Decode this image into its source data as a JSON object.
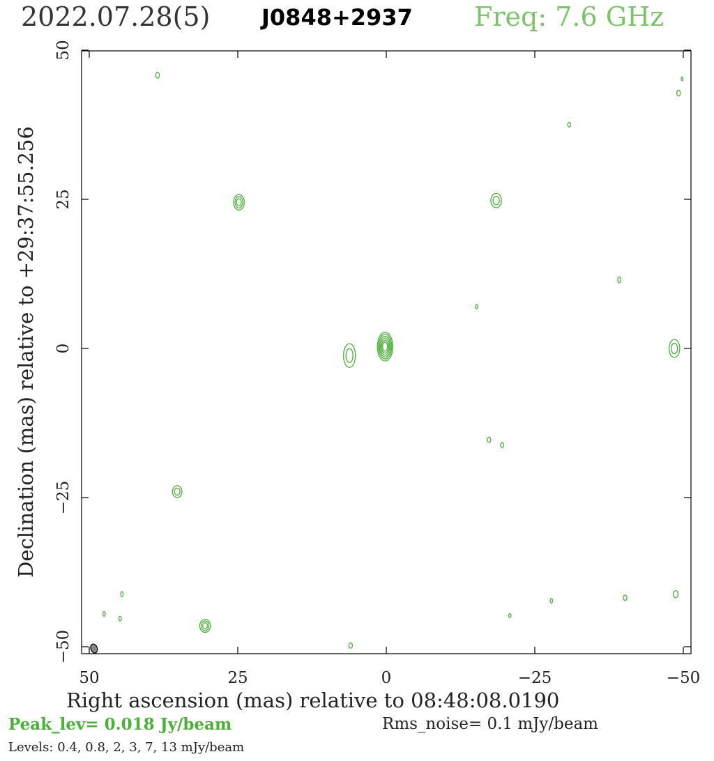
{
  "header": {
    "date": "2022.07.28(5)",
    "source": "J0848+2937",
    "frequency": "Freq: 7.6 GHz"
  },
  "colors": {
    "contour": "#4caf3a",
    "frequency_text": "#7cc46a",
    "axis": "#000000",
    "beam_fill": "#888888"
  },
  "chart_data": {
    "type": "contour",
    "xlabel": "Right ascension (mas) relative to 08:48:08.0190",
    "ylabel": "Declination (mas) relative to +29:37:55.256",
    "xlim": [
      50,
      -50
    ],
    "ylim": [
      -50,
      50
    ],
    "xticks": [
      50,
      25,
      0,
      -25,
      -50
    ],
    "yticks": [
      -50,
      -25,
      0,
      25,
      50
    ],
    "xtick_labels": [
      "50",
      "25",
      "0",
      "−25",
      "−50"
    ],
    "ytick_labels": [
      "−50",
      "−25",
      "0",
      "25",
      "50"
    ],
    "peak_level": "Peak_lev=  0.018 Jy/beam",
    "rms_noise": "Rms_noise=  0.1 mJy/beam",
    "levels_text": "Levels: 0.4, 0.8,    2,    3,    7,   13 mJy/beam",
    "levels_mJy": [
      0.4,
      0.8,
      2,
      3,
      7,
      13
    ],
    "beam": {
      "x": 49.2,
      "y": -50.3,
      "major_mas": 1.4,
      "minor_mas": 1.0,
      "pa_deg": -20
    },
    "components": [
      {
        "x": 0.2,
        "y": 0.3,
        "rings": 6,
        "rx": 1.3,
        "ry": 2.4
      },
      {
        "x": 6.2,
        "y": -1.2,
        "rings": 2,
        "rx": 1.0,
        "ry": 2.0
      },
      {
        "x": 24.8,
        "y": 24.5,
        "rings": 3,
        "rx": 0.9,
        "ry": 1.3
      },
      {
        "x": -18.5,
        "y": 24.8,
        "rings": 2,
        "rx": 0.9,
        "ry": 1.2
      },
      {
        "x": -48.5,
        "y": 0.0,
        "rings": 2,
        "rx": 0.9,
        "ry": 1.5
      },
      {
        "x": 35.2,
        "y": -24.0,
        "rings": 2,
        "rx": 0.8,
        "ry": 1.0
      },
      {
        "x": 30.5,
        "y": -46.5,
        "rings": 3,
        "rx": 0.9,
        "ry": 1.1
      },
      {
        "x": 38.5,
        "y": 45.8,
        "rings": 1,
        "rx": 0.3,
        "ry": 0.5
      },
      {
        "x": -30.8,
        "y": 37.5,
        "rings": 1,
        "rx": 0.25,
        "ry": 0.4
      },
      {
        "x": -49.2,
        "y": 42.8,
        "rings": 1,
        "rx": 0.3,
        "ry": 0.5
      },
      {
        "x": -49.8,
        "y": 45.2,
        "rings": 1,
        "rx": 0.15,
        "ry": 0.3
      },
      {
        "x": -39.2,
        "y": 11.5,
        "rings": 1,
        "rx": 0.25,
        "ry": 0.5
      },
      {
        "x": -15.2,
        "y": 7.0,
        "rings": 1,
        "rx": 0.2,
        "ry": 0.35
      },
      {
        "x": -17.3,
        "y": -15.3,
        "rings": 1,
        "rx": 0.3,
        "ry": 0.45
      },
      {
        "x": -19.5,
        "y": -16.2,
        "rings": 1,
        "rx": 0.25,
        "ry": 0.45
      },
      {
        "x": -40.2,
        "y": -41.8,
        "rings": 1,
        "rx": 0.3,
        "ry": 0.45
      },
      {
        "x": -48.7,
        "y": -41.2,
        "rings": 1,
        "rx": 0.4,
        "ry": 0.6
      },
      {
        "x": -27.8,
        "y": -42.3,
        "rings": 1,
        "rx": 0.2,
        "ry": 0.4
      },
      {
        "x": -20.8,
        "y": -44.8,
        "rings": 1,
        "rx": 0.2,
        "ry": 0.35
      },
      {
        "x": 44.5,
        "y": -41.2,
        "rings": 1,
        "rx": 0.2,
        "ry": 0.45
      },
      {
        "x": 47.5,
        "y": -44.5,
        "rings": 1,
        "rx": 0.2,
        "ry": 0.4
      },
      {
        "x": 44.8,
        "y": -45.3,
        "rings": 1,
        "rx": 0.2,
        "ry": 0.4
      },
      {
        "x": 6.0,
        "y": -49.8,
        "rings": 1,
        "rx": 0.3,
        "ry": 0.45
      }
    ]
  }
}
